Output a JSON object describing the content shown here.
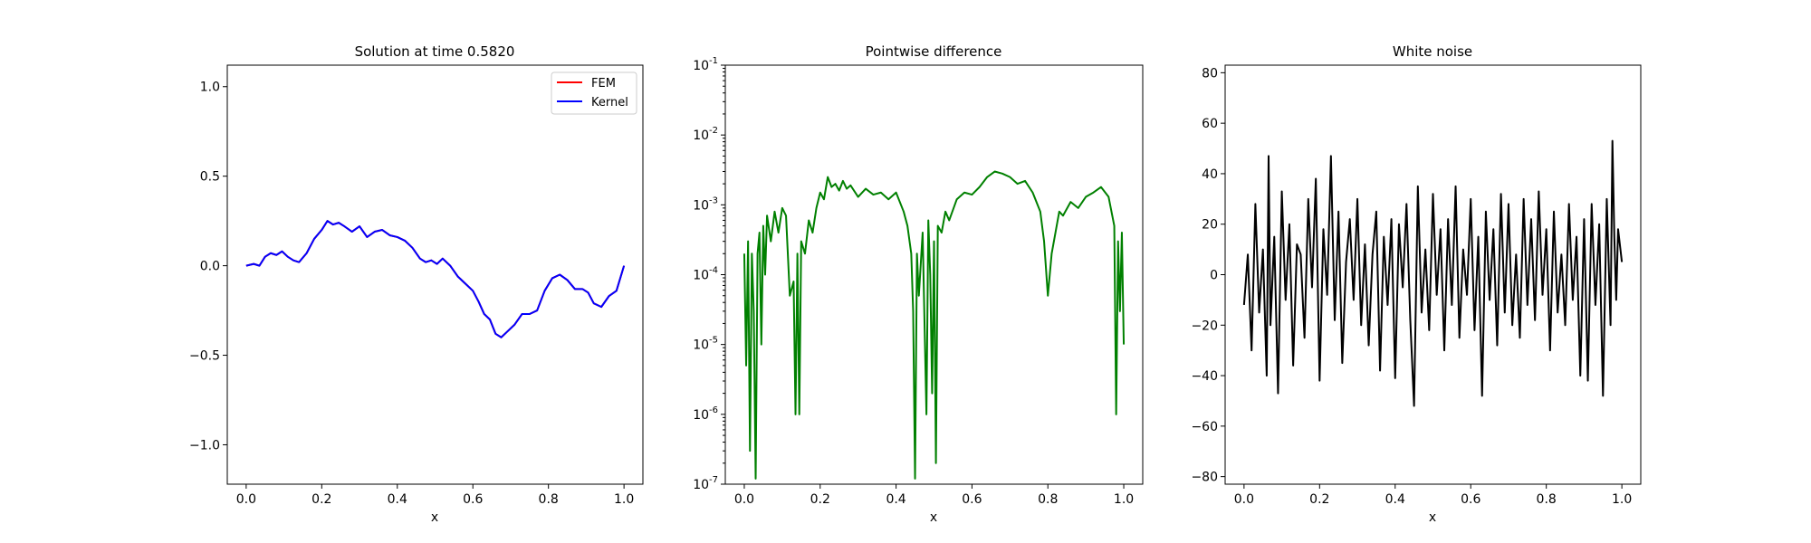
{
  "chart_data": [
    {
      "type": "line",
      "title": "Solution at time 0.5820",
      "xlabel": "x",
      "ylabel": "",
      "xlim": [
        -0.05,
        1.05
      ],
      "ylim": [
        -1.22,
        1.12
      ],
      "xticks": [
        0.0,
        0.2,
        0.4,
        0.6,
        0.8,
        1.0
      ],
      "xtick_labels": [
        "0.0",
        "0.2",
        "0.4",
        "0.6",
        "0.8",
        "1.0"
      ],
      "yticks": [
        -1.0,
        -0.5,
        0.0,
        0.5,
        1.0
      ],
      "ytick_labels": [
        "−1.0",
        "−0.5",
        "0.0",
        "0.5",
        "1.0"
      ],
      "legend": {
        "placement": "upper-right"
      },
      "series": [
        {
          "name": "FEM",
          "color": "#ff0000",
          "x": [
            0.0,
            0.02,
            0.035,
            0.05,
            0.065,
            0.08,
            0.095,
            0.11,
            0.125,
            0.14,
            0.16,
            0.18,
            0.2,
            0.215,
            0.23,
            0.245,
            0.26,
            0.28,
            0.3,
            0.32,
            0.34,
            0.36,
            0.38,
            0.4,
            0.42,
            0.44,
            0.46,
            0.475,
            0.49,
            0.505,
            0.52,
            0.54,
            0.56,
            0.58,
            0.6,
            0.615,
            0.63,
            0.645,
            0.66,
            0.675,
            0.69,
            0.71,
            0.73,
            0.75,
            0.77,
            0.79,
            0.81,
            0.83,
            0.85,
            0.87,
            0.89,
            0.905,
            0.92,
            0.94,
            0.96,
            0.98,
            1.0
          ],
          "y": [
            0.0,
            0.01,
            0.0,
            0.05,
            0.07,
            0.06,
            0.08,
            0.05,
            0.03,
            0.02,
            0.07,
            0.15,
            0.2,
            0.25,
            0.23,
            0.24,
            0.22,
            0.19,
            0.22,
            0.16,
            0.19,
            0.2,
            0.17,
            0.16,
            0.14,
            0.1,
            0.04,
            0.02,
            0.03,
            0.01,
            0.04,
            0.0,
            -0.06,
            -0.1,
            -0.14,
            -0.2,
            -0.27,
            -0.3,
            -0.38,
            -0.4,
            -0.37,
            -0.33,
            -0.27,
            -0.27,
            -0.25,
            -0.14,
            -0.07,
            -0.05,
            -0.08,
            -0.13,
            -0.13,
            -0.15,
            -0.21,
            -0.23,
            -0.17,
            -0.14,
            0.0
          ]
        },
        {
          "name": "Kernel",
          "color": "#0000ff",
          "x": [
            0.0,
            0.02,
            0.035,
            0.05,
            0.065,
            0.08,
            0.095,
            0.11,
            0.125,
            0.14,
            0.16,
            0.18,
            0.2,
            0.215,
            0.23,
            0.245,
            0.26,
            0.28,
            0.3,
            0.32,
            0.34,
            0.36,
            0.38,
            0.4,
            0.42,
            0.44,
            0.46,
            0.475,
            0.49,
            0.505,
            0.52,
            0.54,
            0.56,
            0.58,
            0.6,
            0.615,
            0.63,
            0.645,
            0.66,
            0.675,
            0.69,
            0.71,
            0.73,
            0.75,
            0.77,
            0.79,
            0.81,
            0.83,
            0.85,
            0.87,
            0.89,
            0.905,
            0.92,
            0.94,
            0.96,
            0.98,
            1.0
          ],
          "y": [
            0.0,
            0.01,
            0.0,
            0.05,
            0.07,
            0.06,
            0.08,
            0.05,
            0.03,
            0.02,
            0.07,
            0.15,
            0.2,
            0.25,
            0.23,
            0.24,
            0.22,
            0.19,
            0.22,
            0.16,
            0.19,
            0.2,
            0.17,
            0.16,
            0.14,
            0.1,
            0.04,
            0.02,
            0.03,
            0.01,
            0.04,
            0.0,
            -0.06,
            -0.1,
            -0.14,
            -0.2,
            -0.27,
            -0.3,
            -0.38,
            -0.4,
            -0.37,
            -0.33,
            -0.27,
            -0.27,
            -0.25,
            -0.14,
            -0.07,
            -0.05,
            -0.08,
            -0.13,
            -0.13,
            -0.15,
            -0.21,
            -0.23,
            -0.17,
            -0.14,
            0.0
          ]
        }
      ]
    },
    {
      "type": "line",
      "title": "Pointwise difference",
      "xlabel": "x",
      "ylabel": "",
      "yscale": "log",
      "xlim": [
        -0.05,
        1.05
      ],
      "ylim": [
        1e-07,
        0.1
      ],
      "xticks": [
        0.0,
        0.2,
        0.4,
        0.6,
        0.8,
        1.0
      ],
      "xtick_labels": [
        "0.0",
        "0.2",
        "0.4",
        "0.6",
        "0.8",
        "1.0"
      ],
      "yticks": [
        -7,
        -6,
        -5,
        -4,
        -3,
        -2,
        -1
      ],
      "ytick_labels": [
        "-7",
        "-6",
        "-5",
        "-4",
        "-3",
        "-2",
        "-1"
      ],
      "ytick_base": "10",
      "series": [
        {
          "color": "#008000",
          "x": [
            0.0,
            0.005,
            0.01,
            0.015,
            0.02,
            0.025,
            0.03,
            0.035,
            0.04,
            0.045,
            0.05,
            0.055,
            0.06,
            0.07,
            0.08,
            0.09,
            0.1,
            0.11,
            0.12,
            0.13,
            0.135,
            0.14,
            0.145,
            0.15,
            0.16,
            0.17,
            0.18,
            0.19,
            0.2,
            0.21,
            0.22,
            0.23,
            0.24,
            0.25,
            0.26,
            0.27,
            0.28,
            0.3,
            0.32,
            0.34,
            0.36,
            0.38,
            0.4,
            0.42,
            0.43,
            0.44,
            0.445,
            0.45,
            0.455,
            0.46,
            0.47,
            0.48,
            0.485,
            0.49,
            0.495,
            0.5,
            0.505,
            0.51,
            0.52,
            0.53,
            0.54,
            0.56,
            0.58,
            0.6,
            0.62,
            0.64,
            0.66,
            0.68,
            0.7,
            0.72,
            0.74,
            0.76,
            0.78,
            0.79,
            0.8,
            0.81,
            0.82,
            0.83,
            0.84,
            0.86,
            0.88,
            0.9,
            0.92,
            0.94,
            0.96,
            0.975,
            0.98,
            0.985,
            0.99,
            0.995,
            1.0
          ],
          "y": [
            0.0002,
            5e-06,
            0.0003,
            3e-07,
            0.0002,
            3e-05,
            1.2e-07,
            0.0002,
            0.0004,
            1e-05,
            0.0005,
            0.0001,
            0.0007,
            0.0003,
            0.0008,
            0.0004,
            0.0009,
            0.0007,
            5e-05,
            8e-05,
            1e-06,
            0.0002,
            1e-06,
            0.0003,
            0.0002,
            0.0006,
            0.0004,
            0.0009,
            0.0015,
            0.0012,
            0.0025,
            0.0018,
            0.002,
            0.0016,
            0.0022,
            0.0017,
            0.0019,
            0.0013,
            0.0017,
            0.0014,
            0.0015,
            0.0012,
            0.0015,
            0.0008,
            0.0005,
            0.0002,
            3e-05,
            1.2e-07,
            0.0002,
            5e-05,
            0.0004,
            1e-06,
            0.0006,
            0.0001,
            2e-06,
            0.0003,
            2e-07,
            0.0005,
            0.0004,
            0.0008,
            0.0006,
            0.0012,
            0.0015,
            0.0014,
            0.0018,
            0.0025,
            0.003,
            0.0028,
            0.0025,
            0.002,
            0.0022,
            0.0015,
            0.0008,
            0.0003,
            5e-05,
            0.0002,
            0.0004,
            0.0008,
            0.0007,
            0.0011,
            0.0009,
            0.0013,
            0.0015,
            0.0018,
            0.0013,
            0.0005,
            1e-06,
            0.0003,
            3e-05,
            0.0004,
            1e-05
          ]
        }
      ]
    },
    {
      "type": "line",
      "title": "White noise",
      "xlabel": "x",
      "ylabel": "",
      "xlim": [
        -0.05,
        1.05
      ],
      "ylim": [
        -83,
        83
      ],
      "xticks": [
        0.0,
        0.2,
        0.4,
        0.6,
        0.8,
        1.0
      ],
      "xtick_labels": [
        "0.0",
        "0.2",
        "0.4",
        "0.6",
        "0.8",
        "1.0"
      ],
      "yticks": [
        -80,
        -60,
        -40,
        -20,
        0,
        20,
        40,
        60,
        80
      ],
      "ytick_labels": [
        "−80",
        "−60",
        "−40",
        "−20",
        "0",
        "20",
        "40",
        "60",
        "80"
      ],
      "series": [
        {
          "color": "#000000",
          "x": [
            0.0,
            0.01,
            0.02,
            0.03,
            0.04,
            0.05,
            0.06,
            0.065,
            0.07,
            0.08,
            0.09,
            0.1,
            0.11,
            0.12,
            0.13,
            0.14,
            0.15,
            0.16,
            0.17,
            0.18,
            0.19,
            0.2,
            0.21,
            0.22,
            0.23,
            0.24,
            0.25,
            0.26,
            0.27,
            0.28,
            0.29,
            0.3,
            0.31,
            0.32,
            0.33,
            0.34,
            0.35,
            0.36,
            0.37,
            0.38,
            0.39,
            0.4,
            0.41,
            0.42,
            0.43,
            0.44,
            0.45,
            0.46,
            0.47,
            0.48,
            0.49,
            0.5,
            0.51,
            0.52,
            0.53,
            0.54,
            0.55,
            0.56,
            0.57,
            0.58,
            0.59,
            0.6,
            0.61,
            0.62,
            0.63,
            0.64,
            0.65,
            0.66,
            0.67,
            0.68,
            0.69,
            0.7,
            0.71,
            0.72,
            0.73,
            0.74,
            0.75,
            0.76,
            0.77,
            0.78,
            0.79,
            0.8,
            0.81,
            0.82,
            0.83,
            0.84,
            0.85,
            0.86,
            0.87,
            0.88,
            0.89,
            0.9,
            0.91,
            0.92,
            0.93,
            0.94,
            0.95,
            0.96,
            0.97,
            0.975,
            0.98,
            0.985,
            0.99,
            1.0
          ],
          "y": [
            -12,
            8,
            -30,
            28,
            -15,
            10,
            -40,
            47,
            -20,
            15,
            -47,
            33,
            -10,
            20,
            -36,
            12,
            8,
            -25,
            30,
            -5,
            38,
            -42,
            18,
            -8,
            47,
            -18,
            25,
            -35,
            5,
            22,
            -10,
            30,
            -20,
            12,
            -28,
            8,
            25,
            -38,
            15,
            -12,
            22,
            -41,
            20,
            -5,
            28,
            -18,
            -52,
            35,
            -15,
            10,
            -22,
            32,
            -8,
            18,
            -30,
            22,
            -12,
            35,
            -25,
            10,
            -8,
            30,
            -22,
            15,
            -48,
            25,
            -10,
            18,
            -28,
            32,
            -15,
            28,
            -20,
            8,
            -25,
            30,
            -12,
            22,
            -18,
            33,
            -8,
            18,
            -30,
            25,
            -15,
            8,
            -20,
            28,
            -10,
            15,
            -40,
            22,
            -42,
            28,
            -12,
            20,
            -48,
            30,
            -20,
            53,
            15,
            -10,
            18,
            5
          ]
        }
      ]
    }
  ]
}
